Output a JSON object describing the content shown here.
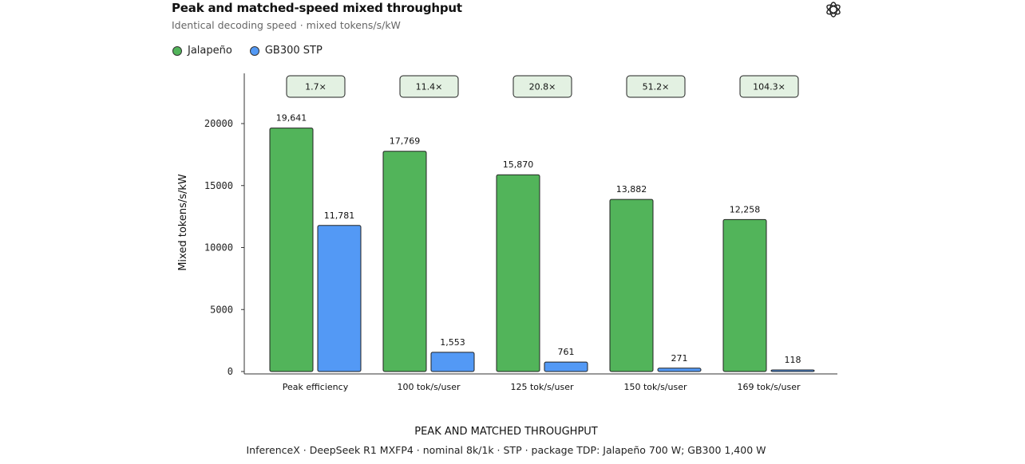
{
  "header": {
    "title": "Peak and matched-speed mixed throughput",
    "subtitle": "Identical decoding speed · mixed tokens/s/kW",
    "logo_icon": "openai-logo-icon"
  },
  "colors": {
    "jalapeno": "#52b45a",
    "gb300": "#5399f5",
    "badge_fill": "#e3f1e2",
    "axis": "#333333"
  },
  "footer": {
    "title": "PEAK AND MATCHED THROUGHPUT",
    "note": "InferenceX · DeepSeek R1 MXFP4 · nominal 8k/1k · STP · package TDP: Jalapeño 700 W; GB300 1,400 W"
  },
  "chart_data": {
    "type": "bar",
    "ylabel": "Mixed tokens/s/kW",
    "xlabel": "",
    "ylim": [
      0,
      24000
    ],
    "yticks": [
      0,
      5000,
      10000,
      15000,
      20000
    ],
    "grid": false,
    "legend_position": "top-left",
    "categories": [
      "Peak efficiency",
      "100 tok/s/user",
      "125 tok/s/user",
      "150 tok/s/user",
      "169 tok/s/user"
    ],
    "series": [
      {
        "name": "Jalapeño",
        "values": [
          19641,
          17769,
          15870,
          13882,
          12258
        ],
        "labels": [
          "19,641",
          "17,769",
          "15,870",
          "13,882",
          "12,258"
        ]
      },
      {
        "name": "GB300 STP",
        "values": [
          11781,
          1553,
          761,
          271,
          118
        ],
        "labels": [
          "11,781",
          "1,553",
          "761",
          "271",
          "118"
        ]
      }
    ],
    "ratios": [
      "1.7×",
      "11.4×",
      "20.8×",
      "51.2×",
      "104.3×"
    ]
  }
}
